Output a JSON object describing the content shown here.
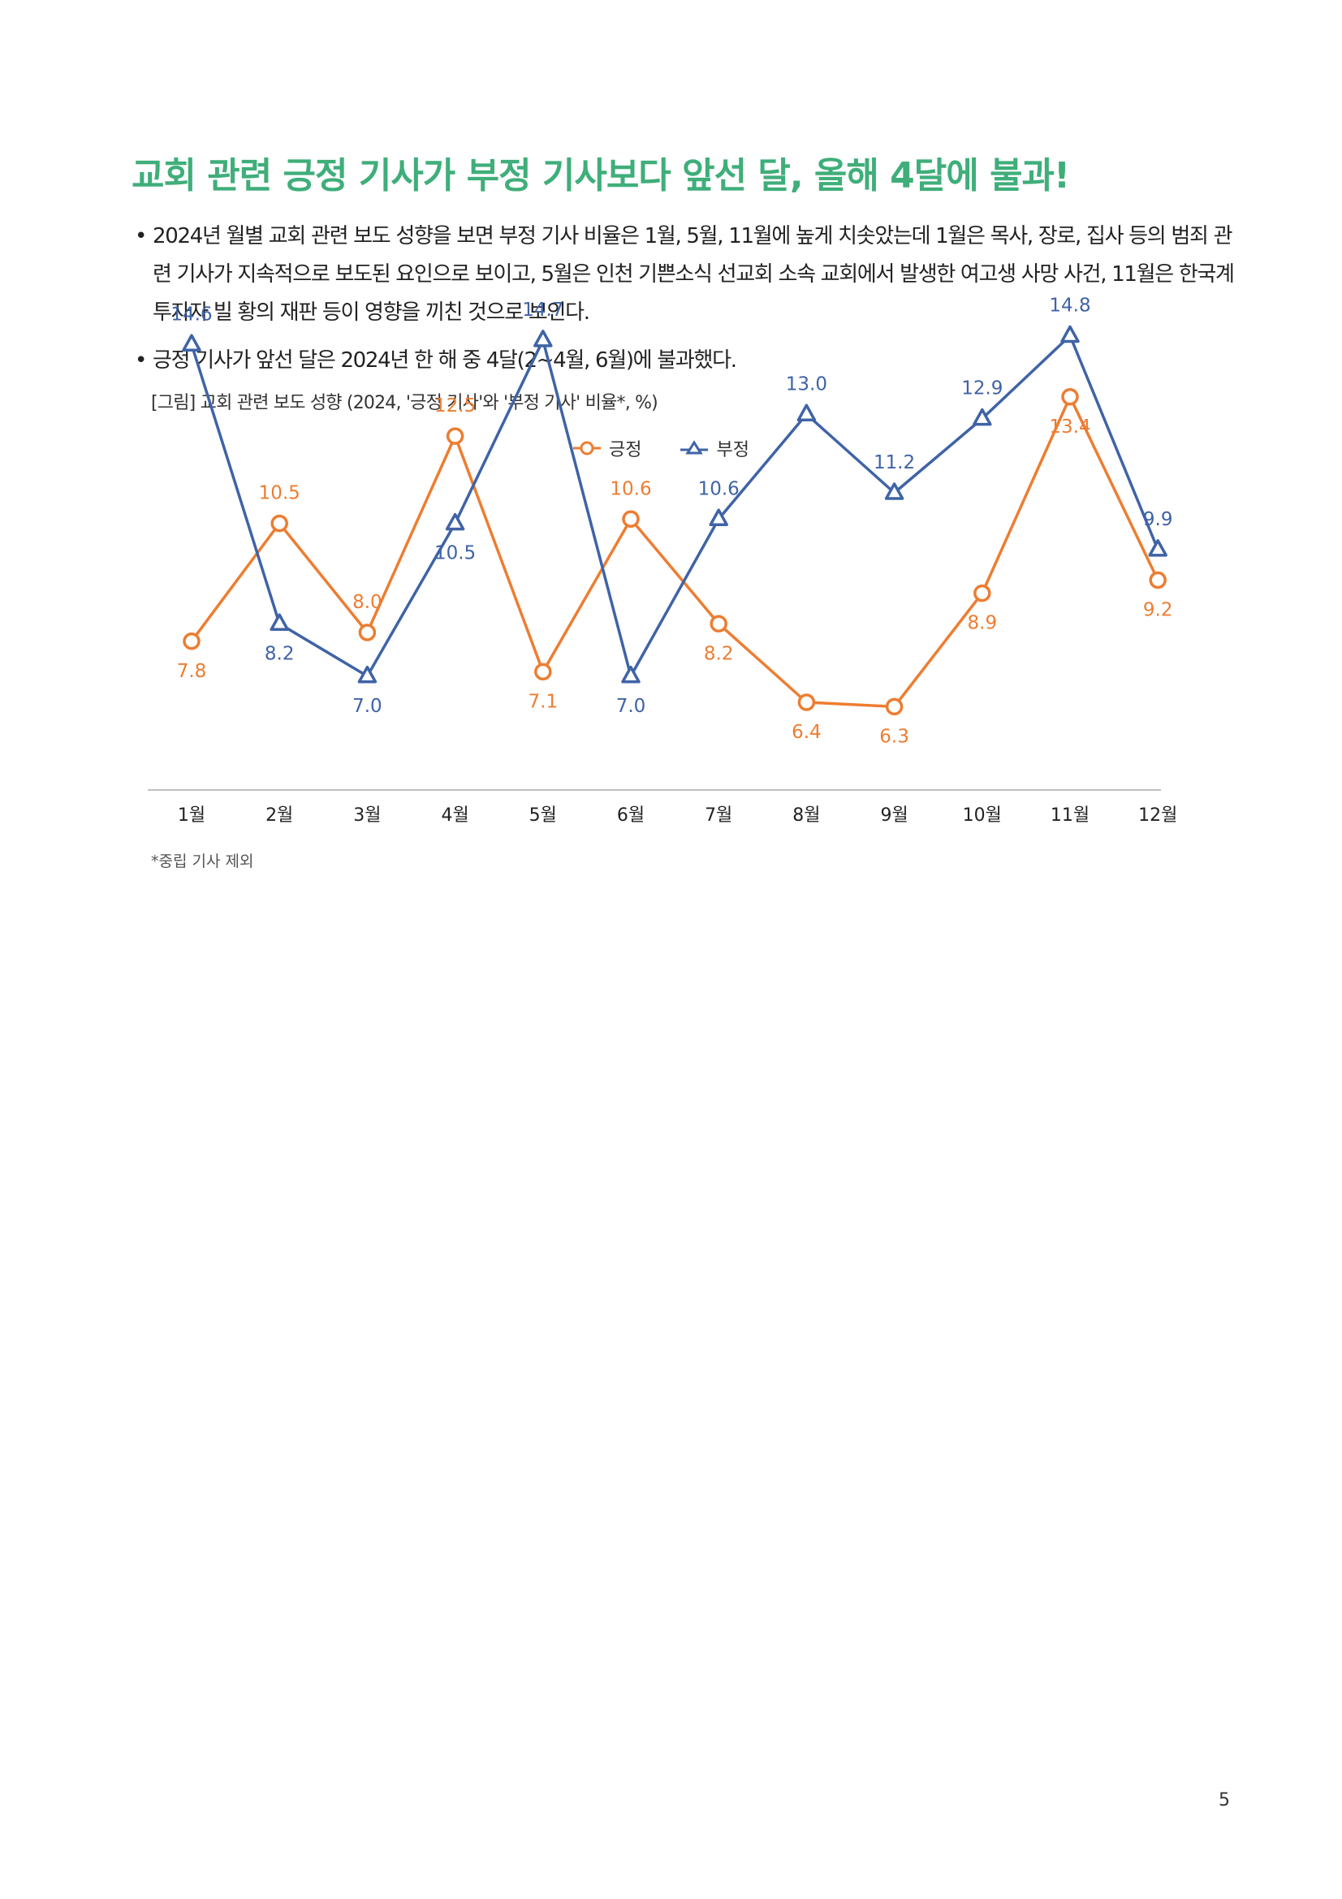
{
  "headline": "교회 관련 긍정 기사가 부정 기사보다 앞선 달, 올해 4달에 불과!",
  "bullet_marker": "•",
  "bullets": [
    "2024년 월별 교회 관련 보도 성향을 보면 부정 기사 비율은 1월, 5월, 11월에 높게 치솟았는데 1월은 목사, 장로, 집사 등의 범죄 관련 기사가 지속적으로 보도된 요인으로 보이고, 5월은 인천 기쁜소식 선교회 소속 교회에서 발생한 여고생 사망 사건, 11월은 한국계 투자자 빌 황의 재판 등이 영향을 끼친 것으로 보인다.",
    "긍정 기사가 앞선 달은 2024년 한 해 중 4달(2~4월, 6월)에 불과했다."
  ],
  "figure_caption": "[그림] 교회 관련 보도 성향 (2024, '긍정 기사'와 '부정 기사' 비율*, %)",
  "footnote": "*중립 기사 제외",
  "page_number": "5",
  "colors": {
    "headline": "#3fae7a",
    "positive": "#ed7d31",
    "negative": "#3f63a6",
    "axis": "#bfbfbf"
  },
  "chart_data": {
    "type": "line",
    "categories": [
      "1월",
      "2월",
      "3월",
      "4월",
      "5월",
      "6월",
      "7월",
      "8월",
      "9월",
      "10월",
      "11월",
      "12월"
    ],
    "series": [
      {
        "name": "긍정",
        "marker": "circle",
        "color": "#ed7d31",
        "values": [
          7.8,
          10.5,
          8.0,
          12.5,
          7.1,
          10.6,
          8.2,
          6.4,
          6.3,
          8.9,
          13.4,
          9.2
        ]
      },
      {
        "name": "부정",
        "marker": "triangle",
        "color": "#3f63a6",
        "values": [
          14.6,
          8.2,
          7.0,
          10.5,
          14.7,
          7.0,
          10.6,
          13.0,
          11.2,
          12.9,
          14.8,
          9.9
        ]
      }
    ],
    "legend_position": "top-center",
    "grid": false,
    "y_axis_visible": false
  }
}
